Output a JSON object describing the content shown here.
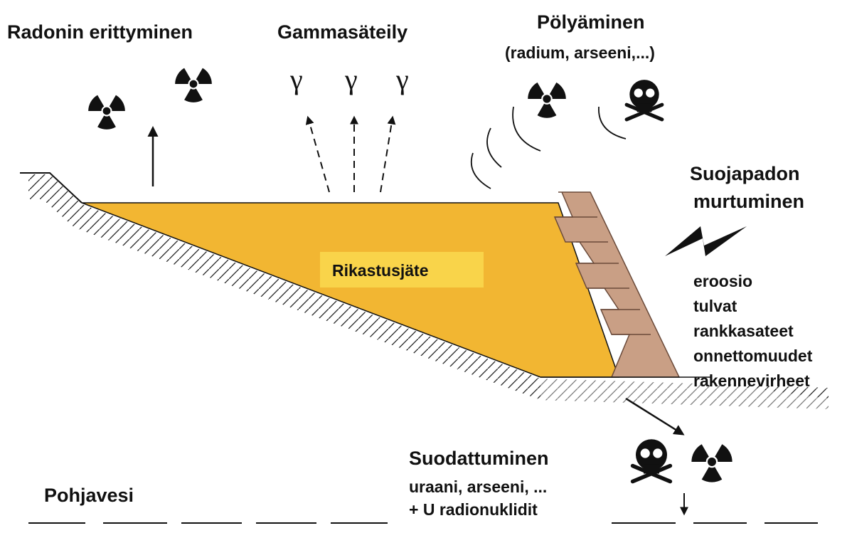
{
  "labels": {
    "radon": "Radonin erittyminen",
    "gamma": "Gammasäteily",
    "dust": "Pölyäminen",
    "dust_detail": "(radium, arseeni,...)",
    "gamma_symbols": [
      "γ",
      "γ",
      "γ"
    ],
    "dam_title": [
      "Suojapadon",
      "murtuminen"
    ],
    "tailings": "Rikastusjäte",
    "causes": [
      "eroosio",
      "tulvat",
      "rankkasateet",
      "onnettomuudet",
      "rakennevirheet"
    ],
    "seepage": "Suodattuminen",
    "seepage_detail": [
      "uraani, arseeni, ...",
      "+ U radionuklidit"
    ],
    "groundwater": "Pohjavesi"
  }
}
